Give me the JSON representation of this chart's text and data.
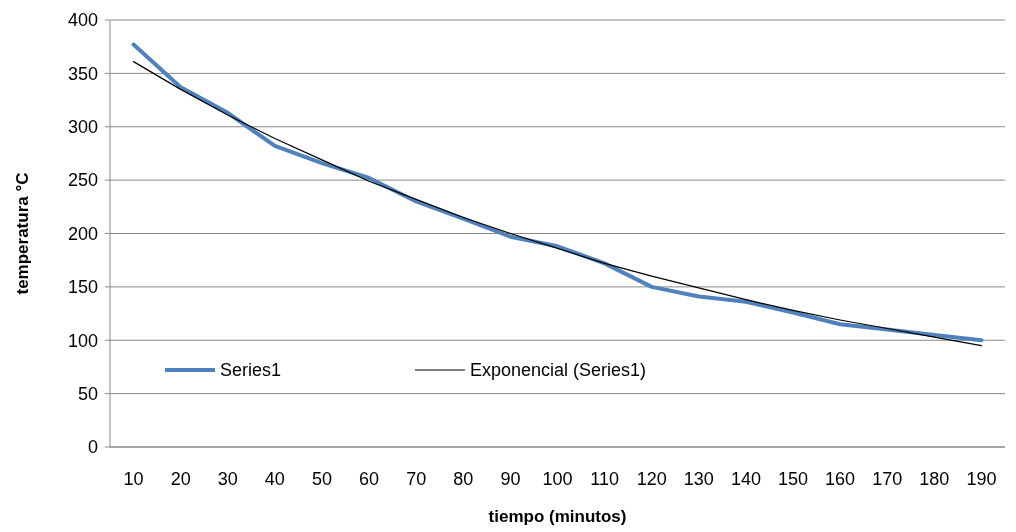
{
  "chart_data": {
    "type": "line",
    "xlabel": "tiempo (minutos)",
    "ylabel": "temperatura °C",
    "categories": [
      "10",
      "20",
      "30",
      "40",
      "50",
      "60",
      "70",
      "80",
      "90",
      "100",
      "110",
      "120",
      "130",
      "140",
      "150",
      "160",
      "170",
      "180",
      "190"
    ],
    "series": [
      {
        "name": "Series1",
        "color": "#4f81bd",
        "values": [
          377,
          337,
          313,
          282,
          266,
          252,
          230,
          214,
          197,
          188,
          172,
          150,
          141,
          136,
          126,
          115,
          110,
          105,
          100
        ]
      },
      {
        "name": "Exponencial (Series1)",
        "color": "#000000",
        "values": [
          361,
          335,
          311,
          289,
          269,
          249,
          232,
          215,
          200,
          186,
          172,
          160,
          149,
          138,
          128,
          119,
          111,
          103,
          95
        ]
      }
    ],
    "ylim": [
      0,
      400
    ],
    "yticks": [
      0,
      50,
      100,
      150,
      200,
      250,
      300,
      350,
      400
    ],
    "grid": "y",
    "legend": "bottom left",
    "marker": "none"
  }
}
